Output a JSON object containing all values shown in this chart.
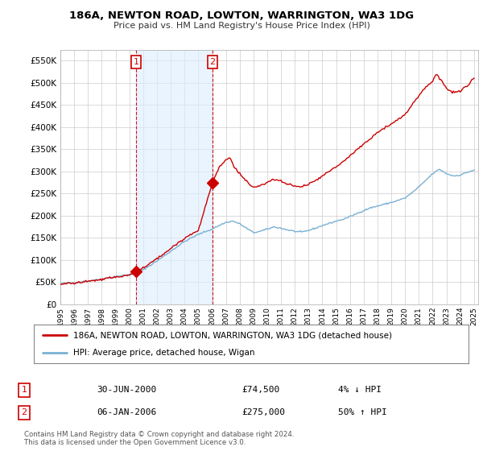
{
  "title": "186A, NEWTON ROAD, LOWTON, WARRINGTON, WA3 1DG",
  "subtitle": "Price paid vs. HM Land Registry's House Price Index (HPI)",
  "legend_label_red": "186A, NEWTON ROAD, LOWTON, WARRINGTON, WA3 1DG (detached house)",
  "legend_label_blue": "HPI: Average price, detached house, Wigan",
  "transaction1_date": "30-JUN-2000",
  "transaction1_price": "£74,500",
  "transaction1_hpi": "4% ↓ HPI",
  "transaction2_date": "06-JAN-2006",
  "transaction2_price": "£275,000",
  "transaction2_hpi": "50% ↑ HPI",
  "footnote": "Contains HM Land Registry data © Crown copyright and database right 2024.\nThis data is licensed under the Open Government Licence v3.0.",
  "ylim": [
    0,
    575000
  ],
  "yticks": [
    0,
    50000,
    100000,
    150000,
    200000,
    250000,
    300000,
    350000,
    400000,
    450000,
    500000,
    550000
  ],
  "background_color": "#ffffff",
  "grid_color": "#cccccc",
  "red_color": "#cc0000",
  "blue_color": "#7ab0d4",
  "shade_color": "#ddeeff",
  "transaction1_x": 2000.5,
  "transaction1_y_red": 74500,
  "transaction2_x": 2006.04,
  "transaction2_y_red": 275000,
  "xlim_left": 1995.0,
  "xlim_right": 2025.3
}
